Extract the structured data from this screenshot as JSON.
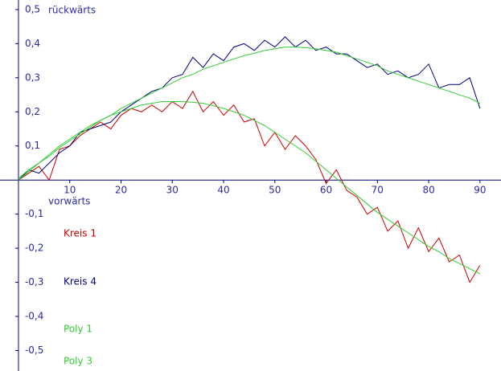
{
  "chart_data": {
    "type": "line",
    "xlabel": "vorwärts",
    "ylabel": "rückwärts",
    "x": [
      0,
      2,
      4,
      6,
      8,
      10,
      12,
      14,
      16,
      18,
      20,
      22,
      24,
      26,
      28,
      30,
      32,
      34,
      36,
      38,
      40,
      42,
      44,
      46,
      48,
      50,
      52,
      54,
      56,
      58,
      60,
      62,
      64,
      66,
      68,
      70,
      72,
      74,
      76,
      78,
      80,
      82,
      84,
      86,
      88,
      90
    ],
    "series": [
      {
        "name": "Kreis 1",
        "color": "#cc0000",
        "values": [
          0.0,
          0.02,
          0.04,
          0.0,
          0.09,
          0.1,
          0.13,
          0.15,
          0.17,
          0.15,
          0.19,
          0.21,
          0.2,
          0.22,
          0.2,
          0.23,
          0.21,
          0.26,
          0.2,
          0.23,
          0.19,
          0.22,
          0.17,
          0.18,
          0.1,
          0.14,
          0.09,
          0.13,
          0.1,
          0.06,
          -0.01,
          0.03,
          -0.03,
          -0.05,
          -0.1,
          -0.08,
          -0.15,
          -0.12,
          -0.2,
          -0.14,
          -0.21,
          -0.17,
          -0.24,
          -0.22,
          -0.3,
          -0.25
        ]
      },
      {
        "name": "Kreis 4",
        "color": "#000080",
        "values": [
          0.0,
          0.03,
          0.02,
          0.05,
          0.08,
          0.1,
          0.14,
          0.15,
          0.16,
          0.17,
          0.2,
          0.22,
          0.24,
          0.26,
          0.27,
          0.3,
          0.31,
          0.36,
          0.33,
          0.37,
          0.35,
          0.39,
          0.4,
          0.38,
          0.41,
          0.39,
          0.42,
          0.39,
          0.41,
          0.38,
          0.39,
          0.37,
          0.37,
          0.35,
          0.33,
          0.34,
          0.31,
          0.32,
          0.3,
          0.31,
          0.34,
          0.27,
          0.28,
          0.28,
          0.3,
          0.21
        ]
      },
      {
        "name": "Poly 1",
        "color": "#33cc33",
        "values": [
          0.005,
          0.03,
          0.05,
          0.075,
          0.1,
          0.12,
          0.14,
          0.16,
          0.175,
          0.19,
          0.2,
          0.21,
          0.22,
          0.225,
          0.23,
          0.23,
          0.23,
          0.228,
          0.225,
          0.218,
          0.21,
          0.2,
          0.19,
          0.175,
          0.16,
          0.14,
          0.12,
          0.1,
          0.08,
          0.055,
          0.03,
          0.005,
          -0.02,
          -0.045,
          -0.07,
          -0.095,
          -0.115,
          -0.135,
          -0.155,
          -0.175,
          -0.195,
          -0.21,
          -0.23,
          -0.245,
          -0.26,
          -0.275
        ]
      },
      {
        "name": "Poly 3",
        "color": "#33cc33",
        "values": [
          0.0,
          0.025,
          0.05,
          0.07,
          0.095,
          0.115,
          0.135,
          0.155,
          0.175,
          0.19,
          0.21,
          0.225,
          0.24,
          0.255,
          0.27,
          0.285,
          0.3,
          0.31,
          0.325,
          0.335,
          0.345,
          0.355,
          0.365,
          0.372,
          0.38,
          0.385,
          0.39,
          0.39,
          0.388,
          0.385,
          0.38,
          0.375,
          0.365,
          0.355,
          0.345,
          0.335,
          0.32,
          0.31,
          0.3,
          0.29,
          0.28,
          0.27,
          0.26,
          0.25,
          0.24,
          0.225
        ]
      }
    ],
    "xlim": [
      -3.6,
      94.1
    ],
    "ylim": [
      -0.56,
      0.528
    ],
    "xticks": [
      10,
      20,
      30,
      40,
      50,
      60,
      70,
      80,
      90
    ],
    "yticks": [
      {
        "value": 0.5,
        "label": "0,5"
      },
      {
        "value": 0.4,
        "label": "0,4"
      },
      {
        "value": 0.3,
        "label": "0,3"
      },
      {
        "value": 0.2,
        "label": "0,2"
      },
      {
        "value": 0.1,
        "label": "0,1"
      },
      {
        "value": -0.1,
        "label": "-0,1"
      },
      {
        "value": -0.2,
        "label": "-0,2"
      },
      {
        "value": -0.3,
        "label": "-0,3"
      },
      {
        "value": -0.4,
        "label": "-0,4"
      },
      {
        "value": -0.5,
        "label": "-0,5"
      }
    ],
    "grid": false
  }
}
